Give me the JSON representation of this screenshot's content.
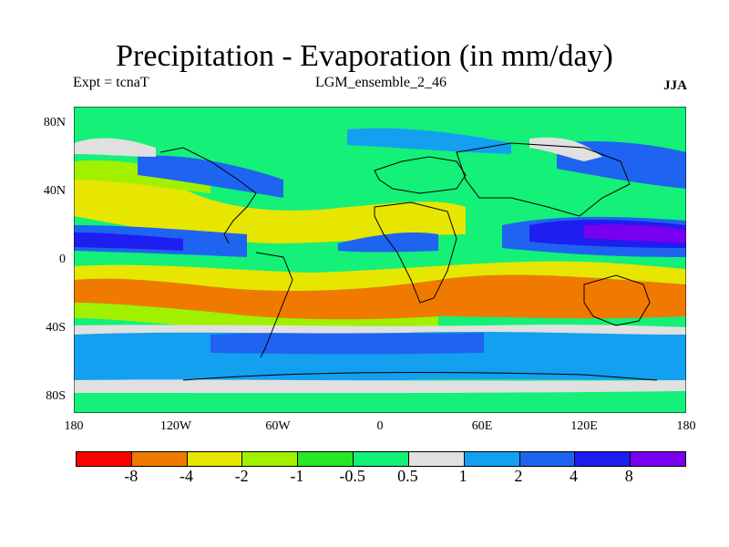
{
  "title": "Precipitation - Evaporation (in mm/day)",
  "subtitle_left": "Expt = tcnaT",
  "subtitle_center": "LGM_ensemble_2_46",
  "subtitle_right": "JJA",
  "y_ticks": [
    "80N",
    "40N",
    "0",
    "40S",
    "80S"
  ],
  "x_ticks": [
    "180",
    "120W",
    "60W",
    "0",
    "60E",
    "120E",
    "180"
  ],
  "colorbar": {
    "colors": [
      "#ff0000",
      "#f07a00",
      "#e6e600",
      "#a0f000",
      "#28e628",
      "#14f078",
      "#e0e0e0",
      "#14a0f0",
      "#1e64f0",
      "#1e1ef0",
      "#7800f0"
    ],
    "labels": [
      "-8",
      "-4",
      "-2",
      "-1",
      "-0.5",
      "0.5",
      "1",
      "2",
      "4",
      "8"
    ]
  }
}
